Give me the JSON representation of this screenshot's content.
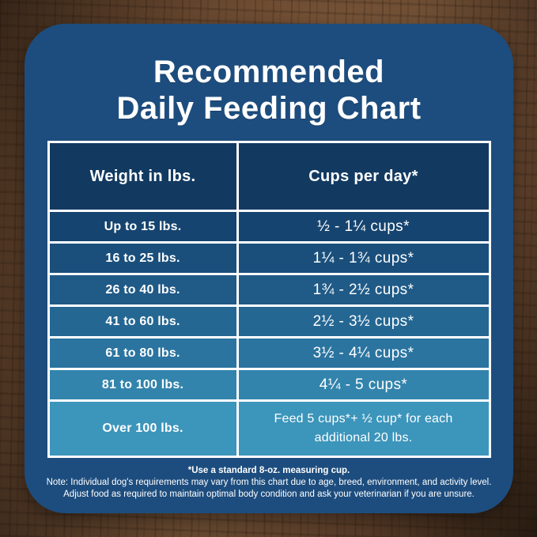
{
  "title": {
    "line1": "Recommended",
    "line2": "Daily Feeding Chart"
  },
  "colors": {
    "card": "#1d4d7e",
    "table_border": "#ffffff",
    "header_row": "#123a61",
    "text": "#ffffff"
  },
  "table": {
    "headers": {
      "weight": "Weight in lbs.",
      "cups": "Cups per day*"
    },
    "header_color": "#123a61",
    "rows": [
      {
        "weight": "Up to 15 lbs.",
        "cups": "½ - 1¼ cups*",
        "color": "#164470"
      },
      {
        "weight": "16 to 25 lbs.",
        "cups": "1¼ - 1¾  cups*",
        "color": "#1a4f7c"
      },
      {
        "weight": "26 to 40 lbs.",
        "cups": "1¾ - 2½ cups*",
        "color": "#205a87"
      },
      {
        "weight": "41 to 60 lbs.",
        "cups": "2½ - 3½ cups*",
        "color": "#256793"
      },
      {
        "weight": "61 to 80 lbs.",
        "cups": "3½ - 4¼ cups*",
        "color": "#2b74a0"
      },
      {
        "weight": "81 to 100 lbs.",
        "cups": "4¼ - 5 cups*",
        "color": "#3284ac"
      },
      {
        "weight": "Over 100 lbs.",
        "cups": "Feed 5 cups*+ ½ cup* for each additional 20 lbs.",
        "color": "#3c95bb"
      }
    ]
  },
  "notes": {
    "line1": "*Use a standard 8-oz. measuring cup.",
    "line2": "Note: Individual dog's requirements may vary from this chart due to age, breed, environment, and activity level.",
    "line3": "Adjust food as required to maintain optimal body condition and ask your veterinarian if you are unsure."
  },
  "chart_data": {
    "type": "table",
    "title": "Recommended Daily Feeding Chart",
    "columns": [
      "Weight in lbs.",
      "Cups per day*"
    ],
    "rows": [
      [
        "Up to 15 lbs.",
        "½ - 1¼ cups*"
      ],
      [
        "16 to 25 lbs.",
        "1¼ - 1¾ cups*"
      ],
      [
        "26 to 40 lbs.",
        "1¾ - 2½ cups*"
      ],
      [
        "41 to 60 lbs.",
        "2½ - 3½ cups*"
      ],
      [
        "61 to 80 lbs.",
        "3½ - 4¼ cups*"
      ],
      [
        "81 to 100 lbs.",
        "4¼ - 5 cups*"
      ],
      [
        "Over 100 lbs.",
        "Feed 5 cups*+ ½ cup* for each additional 20 lbs."
      ]
    ],
    "footnotes": [
      "*Use a standard 8-oz. measuring cup.",
      "Note: Individual dog's requirements may vary from this chart due to age, breed, environment, and activity level.",
      "Adjust food as required to maintain optimal body condition and ask your veterinarian if you are unsure."
    ],
    "layout": "two-column table, row colors graded dark navy to teal top-to-bottom, white grid lines"
  }
}
